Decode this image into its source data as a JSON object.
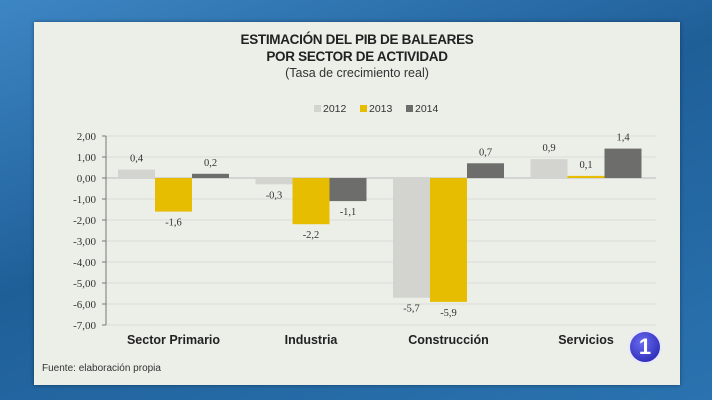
{
  "chart_data": {
    "type": "bar",
    "title": "ESTIMACIÓN DEL PIB DE BALEARES",
    "title_line2": "POR SECTOR DE ACTIVIDAD",
    "subtitle": "(Tasa de crecimiento real)",
    "categories": [
      "Sector Primario",
      "Industria",
      "Construcción",
      "Servicios"
    ],
    "series": [
      {
        "name": "2012",
        "color": "#d3d3cf",
        "values": [
          0.4,
          -0.3,
          -5.7,
          0.9
        ],
        "labels": [
          "0,4",
          "-0,3",
          "-5,7",
          "0,9"
        ]
      },
      {
        "name": "2013",
        "color": "#e6bd00",
        "values": [
          -1.6,
          -2.2,
          -5.9,
          0.1
        ],
        "labels": [
          "-1,6",
          "-2,2",
          "-5,9",
          "0,1"
        ]
      },
      {
        "name": "2014",
        "color": "#6d6d6b",
        "values": [
          0.2,
          -1.1,
          0.7,
          1.4
        ],
        "labels": [
          "0,2",
          "-1,1",
          "0,7",
          "1,4"
        ]
      }
    ],
    "ylim": [
      -7,
      2
    ],
    "yticks": [
      2,
      1,
      0,
      -1,
      -2,
      -3,
      -4,
      -5,
      -6,
      -7
    ],
    "ytick_labels": [
      "2,00",
      "1,00",
      "0,00",
      "-1,00",
      "-2,00",
      "-3,00",
      "-4,00",
      "-5,00",
      "-6,00",
      "-7,00"
    ],
    "grid": true,
    "legend_position": "top-center",
    "source": "Fuente: elaboración propia"
  },
  "logo": {
    "text": "1",
    "name": "tve-1-logo"
  }
}
